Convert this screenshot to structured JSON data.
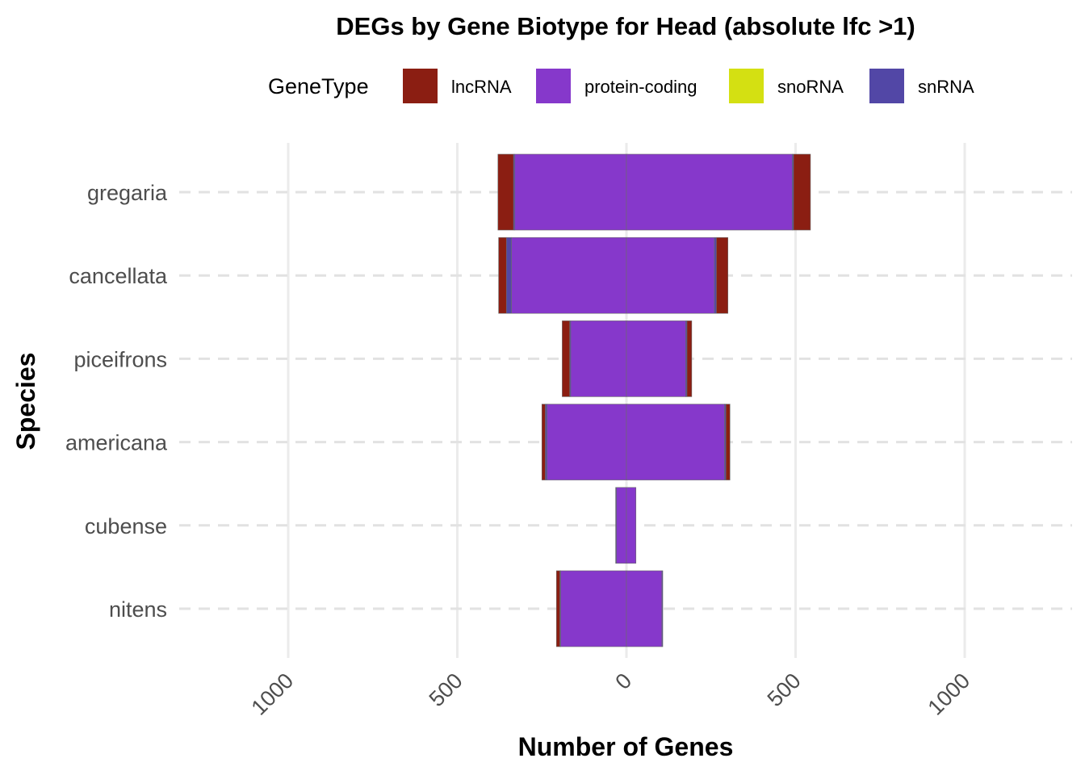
{
  "chart_data": {
    "type": "bar",
    "orientation": "horizontal-diverging",
    "title": "DEGs by Gene Biotype for Head (absolute lfc >1)",
    "xlabel": "Number of Genes",
    "ylabel": "Species",
    "xlim": [
      -1000,
      1000
    ],
    "xticks": [
      -1000,
      -500,
      0,
      500,
      1000
    ],
    "xtick_labels": [
      "1000",
      "500",
      "0",
      "500",
      "1000"
    ],
    "legend": {
      "title": "GeneType",
      "position": "top",
      "entries": [
        {
          "name": "lncRNA",
          "color": "#8B1E12"
        },
        {
          "name": "protein-coding",
          "color": "#8638CB"
        },
        {
          "name": "snoRNA",
          "color": "#D4E012"
        },
        {
          "name": "snRNA",
          "color": "#5247A6"
        }
      ]
    },
    "stack_order": [
      "protein-coding",
      "snoRNA",
      "snRNA",
      "lncRNA"
    ],
    "categories": [
      "gregaria",
      "cancellata",
      "piceifrons",
      "americana",
      "cubense",
      "nitens"
    ],
    "series": [
      {
        "name": "protein-coding",
        "down": [
          330,
          340,
          165,
          235,
          30,
          195
        ],
        "up": [
          490,
          260,
          175,
          290,
          28,
          105
        ]
      },
      {
        "name": "snoRNA",
        "down": [
          0,
          0,
          0,
          0,
          0,
          0
        ],
        "up": [
          0,
          0,
          0,
          0,
          0,
          0
        ]
      },
      {
        "name": "snRNA",
        "down": [
          4,
          15,
          3,
          5,
          2,
          2
        ],
        "up": [
          4,
          6,
          4,
          4,
          0,
          2
        ]
      },
      {
        "name": "lncRNA",
        "down": [
          46,
          23,
          22,
          10,
          0,
          10
        ],
        "up": [
          50,
          34,
          14,
          12,
          0,
          0
        ]
      }
    ]
  }
}
